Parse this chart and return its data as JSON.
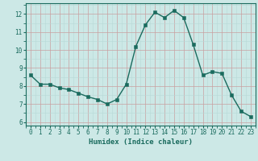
{
  "x": [
    0,
    1,
    2,
    3,
    4,
    5,
    6,
    7,
    8,
    9,
    10,
    11,
    12,
    13,
    14,
    15,
    16,
    17,
    18,
    19,
    20,
    21,
    22,
    23
  ],
  "y": [
    8.6,
    8.1,
    8.1,
    7.9,
    7.8,
    7.6,
    7.4,
    7.25,
    7.0,
    7.25,
    8.1,
    10.2,
    11.4,
    12.1,
    11.8,
    12.2,
    11.8,
    10.3,
    8.6,
    8.8,
    8.7,
    7.5,
    6.6,
    6.3
  ],
  "line_color": "#1a6b5e",
  "marker_color": "#1a6b5e",
  "bg_color": "#cce8e6",
  "grid_color_minor": "#b8d8d6",
  "grid_color_major": "#c8a0a0",
  "xlabel": "Humidex (Indice chaleur)",
  "ylim": [
    5.8,
    12.6
  ],
  "xlim": [
    -0.5,
    23.5
  ],
  "yticks": [
    6,
    7,
    8,
    9,
    10,
    11,
    12
  ],
  "xticks": [
    0,
    1,
    2,
    3,
    4,
    5,
    6,
    7,
    8,
    9,
    10,
    11,
    12,
    13,
    14,
    15,
    16,
    17,
    18,
    19,
    20,
    21,
    22,
    23
  ],
  "tick_color": "#1a6b5e",
  "label_fontsize": 6.5,
  "tick_fontsize": 5.5,
  "line_width": 1.0,
  "marker_size": 2.5
}
